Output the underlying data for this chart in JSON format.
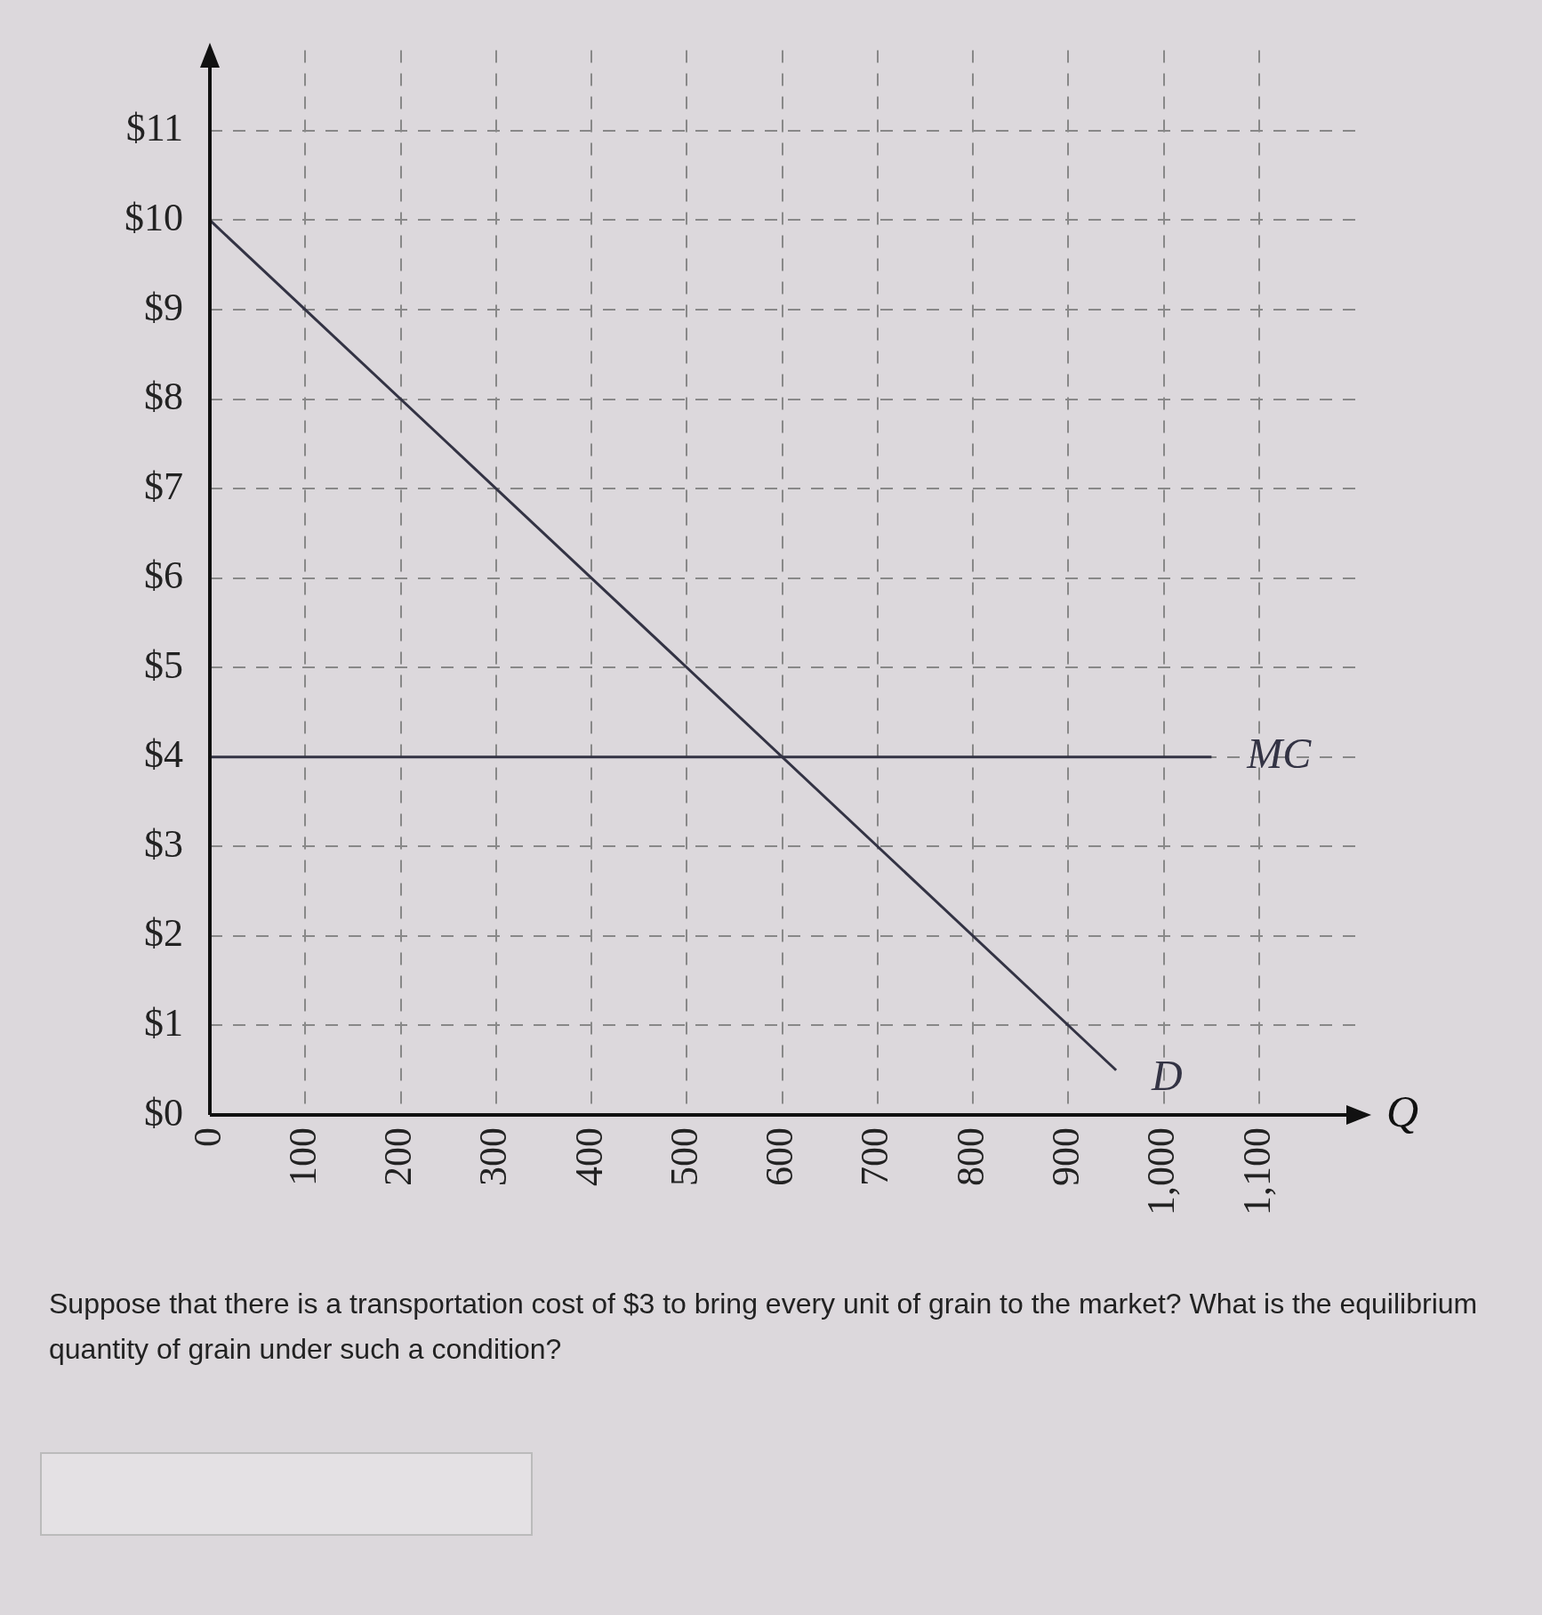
{
  "chart_data": {
    "type": "line",
    "xlabel": "Q",
    "xlim": [
      0,
      1210
    ],
    "ylim": [
      0,
      11.9
    ],
    "xticks": [
      0,
      100,
      200,
      300,
      400,
      500,
      600,
      700,
      800,
      900,
      {
        "value": 1000,
        "label": "1,000"
      },
      {
        "value": 1100,
        "label": "1,100"
      }
    ],
    "yticks": [
      {
        "value": 0,
        "label": "$0"
      },
      {
        "value": 1,
        "label": "$1"
      },
      {
        "value": 2,
        "label": "$2"
      },
      {
        "value": 3,
        "label": "$3"
      },
      {
        "value": 4,
        "label": "$4"
      },
      {
        "value": 5,
        "label": "$5"
      },
      {
        "value": 6,
        "label": "$6"
      },
      {
        "value": 7,
        "label": "$7"
      },
      {
        "value": 8,
        "label": "$8"
      },
      {
        "value": 9,
        "label": "$9"
      },
      {
        "value": 10,
        "label": "$10"
      },
      {
        "value": 11,
        "label": "$11"
      }
    ],
    "grid": true,
    "legend": false,
    "marker": "none",
    "line_style": "solid",
    "series": [
      {
        "name": "D",
        "color": "#333344",
        "x": [
          0,
          950
        ],
        "values": [
          10,
          0.5
        ]
      },
      {
        "name": "MC",
        "color": "#333344",
        "x": [
          0,
          1050
        ],
        "values": [
          4,
          4
        ]
      }
    ],
    "annotations": [
      "Suppose that there is a transportation cost of $3 to bring every unit of grain to the market? What is the equilibrium quantity of grain under such a condition?"
    ]
  }
}
